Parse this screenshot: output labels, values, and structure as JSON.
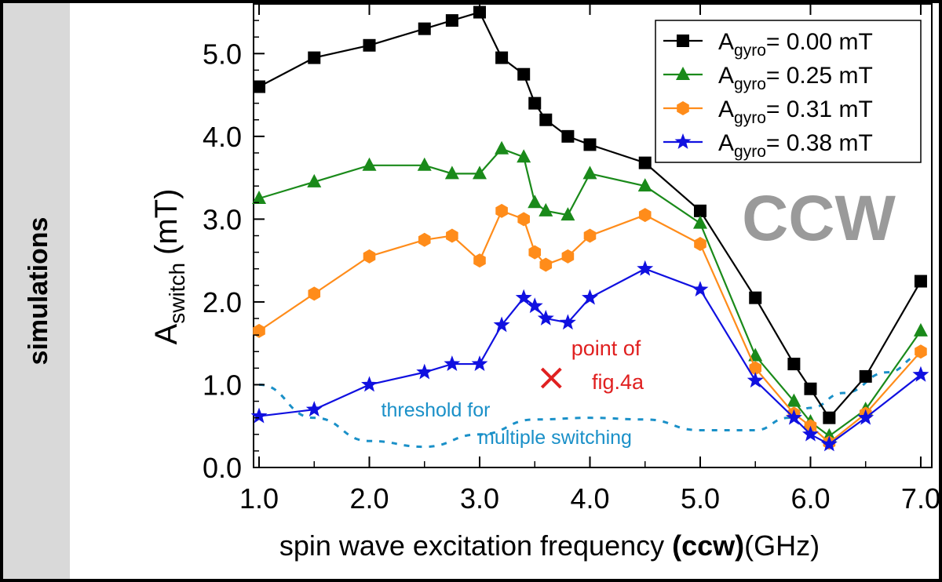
{
  "side_label": "simulations",
  "corner_label": "CCW",
  "chart_data": {
    "type": "line",
    "xlabel": "spin wave excitation frequency ",
    "xlabel_bold": "(ccw)",
    "xlabel_unit": "(GHz)",
    "ylabel_main": "A",
    "ylabel_sub": "switch",
    "ylabel_unit": "(mT)",
    "xlim": [
      0.95,
      7.1
    ],
    "ylim": [
      0,
      5.6
    ],
    "xticks": [
      1.0,
      2.0,
      3.0,
      4.0,
      5.0,
      6.0,
      7.0
    ],
    "xtick_labels": [
      "1.0",
      "2.0",
      "3.0",
      "4.0",
      "5.0",
      "6.0",
      "7.0"
    ],
    "yticks": [
      0.0,
      1.0,
      2.0,
      3.0,
      4.0,
      5.0
    ],
    "ytick_labels": [
      "0.0",
      "1.0",
      "2.0",
      "3.0",
      "4.0",
      "5.0"
    ],
    "legend_position": "top-right",
    "series": [
      {
        "name_main": "A",
        "name_sub": "gyro",
        "name_rest": "= 0.00 mT",
        "color": "#000000",
        "marker": "square",
        "x": [
          1.0,
          1.5,
          2.0,
          2.5,
          2.75,
          3.0,
          3.2,
          3.4,
          3.5,
          3.6,
          3.8,
          4.0,
          4.5,
          5.0,
          5.5,
          5.85,
          6.0,
          6.17,
          6.5,
          7.0
        ],
        "y": [
          4.6,
          4.95,
          5.1,
          5.3,
          5.4,
          5.5,
          4.95,
          4.75,
          4.4,
          4.2,
          4.0,
          3.9,
          3.68,
          3.1,
          2.05,
          1.25,
          0.95,
          0.6,
          1.1,
          2.25
        ]
      },
      {
        "name_main": "A",
        "name_sub": "gyro",
        "name_rest": "= 0.25 mT",
        "color": "#1a8a1a",
        "marker": "triangle",
        "x": [
          1.0,
          1.5,
          2.0,
          2.5,
          2.75,
          3.0,
          3.2,
          3.4,
          3.5,
          3.6,
          3.8,
          4.0,
          4.5,
          5.0,
          5.5,
          5.85,
          6.0,
          6.17,
          6.5,
          7.0
        ],
        "y": [
          3.25,
          3.45,
          3.65,
          3.65,
          3.55,
          3.55,
          3.85,
          3.75,
          3.2,
          3.1,
          3.05,
          3.55,
          3.4,
          2.95,
          1.35,
          0.8,
          0.55,
          0.38,
          0.7,
          1.65
        ]
      },
      {
        "name_main": "A",
        "name_sub": "gyro",
        "name_rest": "= 0.31 mT",
        "color": "#ff8c1a",
        "marker": "hexagon",
        "x": [
          1.0,
          1.5,
          2.0,
          2.5,
          2.75,
          3.0,
          3.2,
          3.4,
          3.5,
          3.6,
          3.8,
          4.0,
          4.5,
          5.0,
          5.5,
          5.85,
          6.0,
          6.17,
          6.5,
          7.0
        ],
        "y": [
          1.65,
          2.1,
          2.55,
          2.75,
          2.8,
          2.5,
          3.1,
          3.0,
          2.6,
          2.45,
          2.55,
          2.8,
          3.05,
          2.7,
          1.2,
          0.65,
          0.5,
          0.3,
          0.65,
          1.4
        ]
      },
      {
        "name_main": "A",
        "name_sub": "gyro",
        "name_rest": "= 0.38 mT",
        "color": "#1010e0",
        "marker": "star",
        "x": [
          1.0,
          1.5,
          2.0,
          2.5,
          2.75,
          3.0,
          3.2,
          3.4,
          3.5,
          3.6,
          3.8,
          4.0,
          4.5,
          5.0,
          5.5,
          5.85,
          6.0,
          6.17,
          6.5,
          7.0
        ],
        "y": [
          0.62,
          0.7,
          1.0,
          1.15,
          1.25,
          1.25,
          1.72,
          2.05,
          1.95,
          1.8,
          1.75,
          2.05,
          2.4,
          2.15,
          1.05,
          0.6,
          0.4,
          0.28,
          0.6,
          1.12
        ]
      }
    ],
    "threshold": {
      "label_line1": "threshold for",
      "label_line2": "multiple switching",
      "color": "#1a90c8",
      "x": [
        1.0,
        1.5,
        2.0,
        2.5,
        3.0,
        3.5,
        4.0,
        4.5,
        5.0,
        5.5,
        5.8,
        6.0,
        6.3,
        6.7,
        7.0
      ],
      "y": [
        1.0,
        0.6,
        0.32,
        0.25,
        0.4,
        0.58,
        0.6,
        0.58,
        0.45,
        0.45,
        0.6,
        0.72,
        0.9,
        1.15,
        1.35
      ]
    },
    "annotation": {
      "line1": "point of",
      "line2": "fig.4a",
      "x": 3.65,
      "y": 1.08,
      "color": "#e02020"
    }
  }
}
